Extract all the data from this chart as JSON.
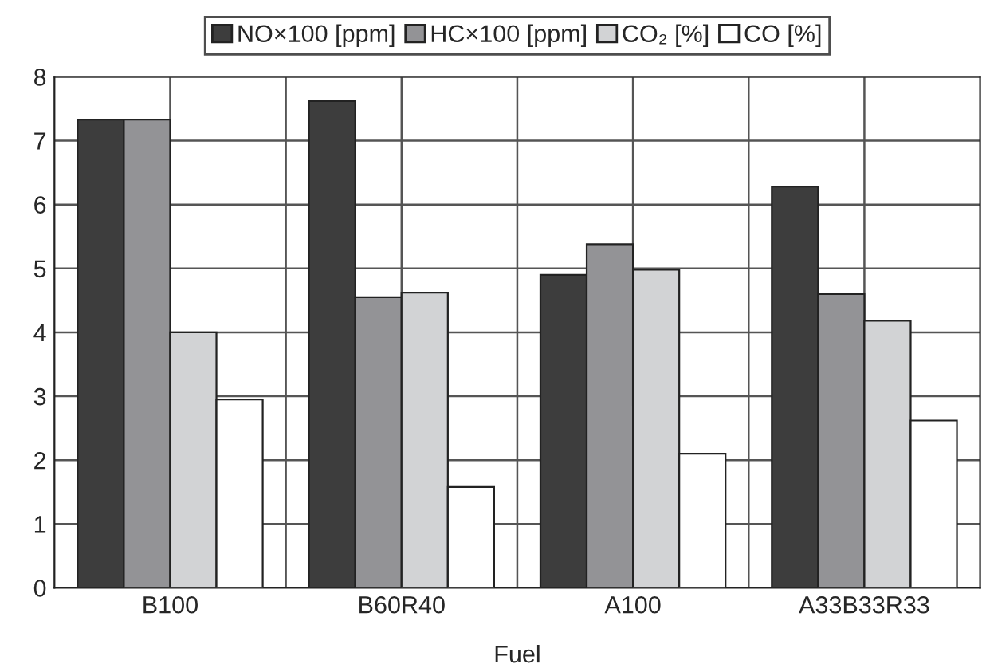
{
  "chart_data": {
    "type": "bar",
    "xlabel": "Fuel",
    "categories": [
      "B100",
      "B60R40",
      "A100",
      "A33B33R33"
    ],
    "series": [
      {
        "name": "NO×100 [ppm]",
        "color": "#3d3d3d",
        "values": [
          7.33,
          7.62,
          4.9,
          6.28
        ]
      },
      {
        "name": "HC×100 [ppm]",
        "color": "#939396",
        "values": [
          7.33,
          4.55,
          5.38,
          4.6
        ]
      },
      {
        "name": "CO₂ [%]",
        "color": "#d2d3d5",
        "values": [
          4.0,
          4.62,
          4.98,
          4.18
        ]
      },
      {
        "name": "CO [%]",
        "color": "#ffffff",
        "values": [
          2.95,
          1.58,
          2.1,
          2.62
        ]
      }
    ],
    "ylim": [
      0,
      8
    ],
    "yticks": [
      0,
      1,
      2,
      3,
      4,
      5,
      6,
      7,
      8
    ],
    "grid": true,
    "legend": "top"
  }
}
